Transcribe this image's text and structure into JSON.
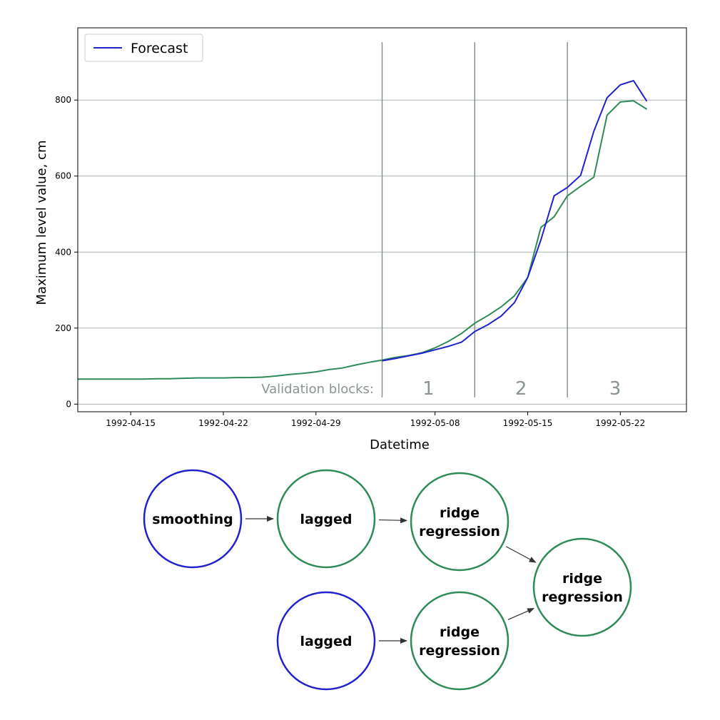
{
  "chart_data": {
    "type": "line",
    "title": "",
    "xlabel": "Datetime",
    "ylabel": "Maximum level value, cm",
    "x_tick_labels": [
      "1992-04-15",
      "1992-04-22",
      "1992-04-29",
      "1992-05-08",
      "1992-05-15",
      "1992-05-22"
    ],
    "y_ticks": [
      0,
      200,
      400,
      600,
      800
    ],
    "ylim": [
      -20,
      990
    ],
    "xlim": [
      "1992-04-11",
      "1992-05-27"
    ],
    "grid": "horizontal",
    "legend": {
      "placement": "top-left",
      "entries": [
        "Forecast"
      ]
    },
    "x": [
      "1992-04-11",
      "1992-04-12",
      "1992-04-13",
      "1992-04-14",
      "1992-04-15",
      "1992-04-16",
      "1992-04-17",
      "1992-04-18",
      "1992-04-19",
      "1992-04-20",
      "1992-04-21",
      "1992-04-22",
      "1992-04-23",
      "1992-04-24",
      "1992-04-25",
      "1992-04-26",
      "1992-04-27",
      "1992-04-28",
      "1992-04-29",
      "1992-04-30",
      "1992-05-01",
      "1992-05-02",
      "1992-05-03",
      "1992-05-04",
      "1992-05-05",
      "1992-05-06",
      "1992-05-07",
      "1992-05-08",
      "1992-05-09",
      "1992-05-10",
      "1992-05-11",
      "1992-05-12",
      "1992-05-13",
      "1992-05-14",
      "1992-05-15",
      "1992-05-16",
      "1992-05-17",
      "1992-05-18",
      "1992-05-19",
      "1992-05-20",
      "1992-05-21",
      "1992-05-22",
      "1992-05-23",
      "1992-05-24",
      "1992-05-25"
    ],
    "series": [
      {
        "name": "",
        "color": "#2e8b57",
        "values": [
          66,
          66,
          66,
          66,
          66,
          66,
          67,
          67,
          68,
          69,
          69,
          69,
          70,
          70,
          71,
          74,
          78,
          81,
          85,
          91,
          95,
          103,
          110,
          116,
          123,
          128,
          135,
          148,
          165,
          186,
          213,
          233,
          256,
          285,
          333,
          465,
          493,
          548,
          573,
          597,
          760,
          795,
          798,
          776,
          null
        ]
      },
      {
        "name": "Forecast",
        "color": "#2222cc",
        "values": [
          null,
          null,
          null,
          null,
          null,
          null,
          null,
          null,
          null,
          null,
          null,
          null,
          null,
          null,
          null,
          null,
          null,
          null,
          null,
          null,
          null,
          null,
          null,
          114,
          120,
          127,
          134,
          143,
          152,
          163,
          191,
          209,
          232,
          267,
          333,
          432,
          548,
          570,
          602,
          718,
          806,
          840,
          851,
          797,
          null
        ]
      }
    ],
    "vlines": [
      "1992-05-04",
      "1992-05-11",
      "1992-05-18"
    ],
    "annotations": {
      "label": "Validation blocks:",
      "blocks": [
        "1",
        "2",
        "3"
      ]
    }
  },
  "diagram": {
    "nodes": [
      {
        "id": "smoothing",
        "lines": [
          "smoothing"
        ],
        "color": "#2222cc"
      },
      {
        "id": "lagged1",
        "lines": [
          "lagged"
        ],
        "color": "#2e8b57"
      },
      {
        "id": "ridge1",
        "lines": [
          "ridge",
          "regression"
        ],
        "color": "#2e8b57"
      },
      {
        "id": "ridge_final",
        "lines": [
          "ridge",
          "regression"
        ],
        "color": "#2e8b57"
      },
      {
        "id": "lagged2",
        "lines": [
          "lagged"
        ],
        "color": "#2222cc"
      },
      {
        "id": "ridge2",
        "lines": [
          "ridge",
          "regression"
        ],
        "color": "#2e8b57"
      }
    ],
    "edges": [
      [
        "smoothing",
        "lagged1"
      ],
      [
        "lagged1",
        "ridge1"
      ],
      [
        "ridge1",
        "ridge_final"
      ],
      [
        "lagged2",
        "ridge2"
      ],
      [
        "ridge2",
        "ridge_final"
      ]
    ]
  }
}
